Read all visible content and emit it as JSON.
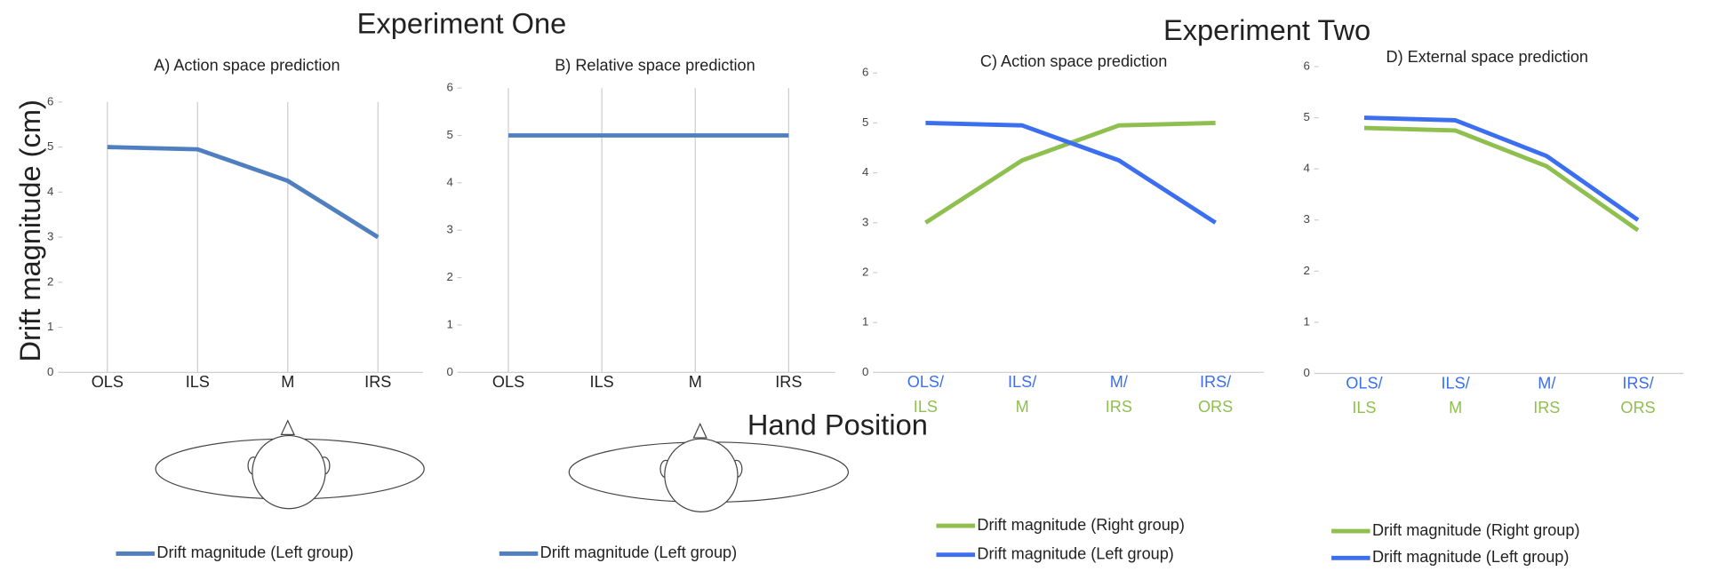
{
  "figure_texts": {
    "experiment_one": "Experiment One",
    "experiment_two": "Experiment Two",
    "y_axis_label": "Drift magnitude (cm)",
    "x_axis_label": "Hand Position"
  },
  "chart_data": [
    {
      "type": "line",
      "title": "A) Action space prediction",
      "categories": [
        "OLS",
        "ILS",
        "M",
        "IRS"
      ],
      "series": [
        {
          "name": "Drift magnitude (Left group)",
          "color": "#4f7fbf",
          "values": [
            5,
            4.95,
            4.25,
            3
          ]
        }
      ],
      "ylim": [
        0,
        6
      ],
      "yticks": [
        0,
        1,
        2,
        3,
        4,
        5,
        6
      ],
      "grid": true
    },
    {
      "type": "line",
      "title": "B) Relative space prediction",
      "categories": [
        "OLS",
        "ILS",
        "M",
        "IRS"
      ],
      "series": [
        {
          "name": "Drift magnitude (Left group)",
          "color": "#4f7fbf",
          "values": [
            5,
            5,
            5,
            5
          ]
        }
      ],
      "ylim": [
        0,
        6
      ],
      "yticks": [
        0,
        1,
        2,
        3,
        4,
        5,
        6
      ],
      "grid": true
    },
    {
      "type": "line",
      "title": "C) Action space prediction",
      "categories": [
        [
          "OLS/",
          "ILS"
        ],
        [
          "ILS/",
          "M"
        ],
        [
          "M/",
          "IRS"
        ],
        [
          "IRS/",
          "ORS"
        ]
      ],
      "series": [
        {
          "name": "Drift magnitude (Right group)",
          "color": "#8fbf4f",
          "values": [
            3,
            4.25,
            4.95,
            5
          ]
        },
        {
          "name": "Drift magnitude (Left group)",
          "color": "#3b6ff0",
          "values": [
            5,
            4.95,
            4.25,
            3
          ]
        }
      ],
      "ylim": [
        0,
        6
      ],
      "yticks": [
        0,
        1,
        2,
        3,
        4,
        5,
        6
      ],
      "grid": false
    },
    {
      "type": "line",
      "title": "D) External space prediction",
      "categories": [
        [
          "OLS/",
          "ILS"
        ],
        [
          "ILS/",
          "M"
        ],
        [
          "M/",
          "IRS"
        ],
        [
          "IRS/",
          "ORS"
        ]
      ],
      "series": [
        {
          "name": "Drift magnitude (Right group)",
          "color": "#8fbf4f",
          "values": [
            4.8,
            4.75,
            4.05,
            2.8
          ]
        },
        {
          "name": "Drift magnitude (Left group)",
          "color": "#3b6ff0",
          "values": [
            5,
            4.95,
            4.25,
            3
          ]
        }
      ],
      "ylim": [
        0,
        6
      ],
      "yticks": [
        0,
        1,
        2,
        3,
        4,
        5,
        6
      ],
      "grid": false
    }
  ]
}
